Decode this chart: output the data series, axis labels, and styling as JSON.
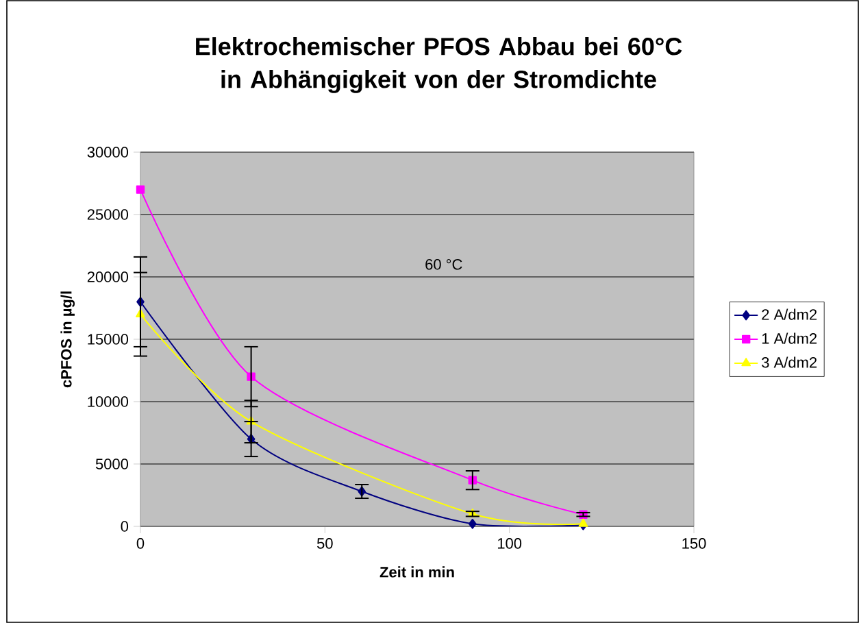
{
  "chart_data": {
    "type": "line",
    "title": "Elektrochemischer PFOS Abbau bei 60°C in Abhängigkeit von der Stromdichte",
    "xlabel": "Zeit in min",
    "ylabel": "cPFOS in µg/l",
    "annotations": [
      "60 °C"
    ],
    "xlim": [
      0,
      150
    ],
    "ylim": [
      0,
      30000
    ],
    "xticks": [
      0,
      50,
      100,
      150
    ],
    "yticks": [
      0,
      5000,
      10000,
      15000,
      20000,
      25000,
      30000
    ],
    "grid": "y",
    "legend": "right",
    "line_style": "solid",
    "series": [
      {
        "name": "2 A/dm2",
        "color": "#000080",
        "marker": "diamond",
        "x": [
          0,
          30,
          60,
          90,
          120
        ],
        "values": [
          18000,
          7000,
          2800,
          200,
          100
        ],
        "errors": [
          3600,
          1400,
          550,
          null,
          null
        ]
      },
      {
        "name": "1 A/dm2",
        "color": "#ff00ff",
        "marker": "square",
        "x": [
          0,
          30,
          90,
          120
        ],
        "values": [
          27000,
          12000,
          3700,
          950
        ],
        "errors": [
          null,
          2400,
          750,
          150
        ]
      },
      {
        "name": "3 A/dm2",
        "color": "#ffff00",
        "marker": "triangle",
        "x": [
          0,
          30,
          90,
          120
        ],
        "values": [
          17000,
          8400,
          1000,
          200
        ],
        "errors": [
          3350,
          1700,
          200,
          null
        ]
      }
    ]
  }
}
